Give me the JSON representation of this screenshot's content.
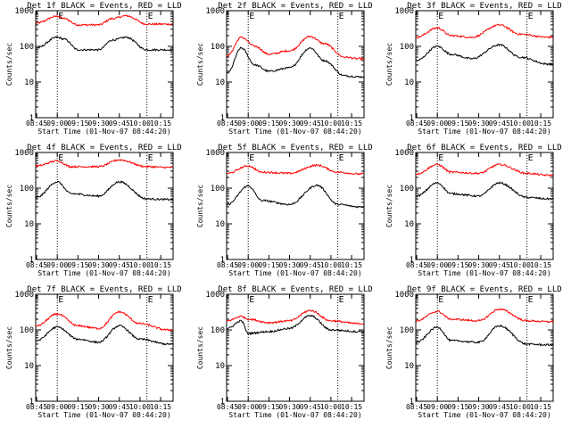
{
  "chart_data": [
    {
      "type": "line",
      "title": "Det 1f BLACK = Events, RED = LLD",
      "xlabel": "Start Time (01-Nov-07 08:44:20)",
      "ylabel": "Counts/sec",
      "x_tick_labels": [
        "08:45",
        "09:00",
        "09:15",
        "09:30",
        "09:45",
        "10:00",
        "10:15"
      ],
      "y_tick_labels": [
        "1",
        "10",
        "100",
        "1000"
      ],
      "yscale": "log",
      "ylim": [
        1,
        1000
      ],
      "markers": [
        {
          "label": "E",
          "time": "09:00"
        },
        {
          "label": "E",
          "time": "10:05"
        }
      ],
      "series": [
        {
          "color": "#ff0000",
          "x": [
            "08:45",
            "09:00",
            "09:05",
            "09:15",
            "09:30",
            "09:40",
            "09:50",
            "10:05",
            "10:20"
          ],
          "values": [
            450,
            700,
            600,
            400,
            400,
            600,
            720,
            420,
            420
          ]
        },
        {
          "color": "#000000",
          "x": [
            "08:45",
            "09:00",
            "09:05",
            "09:15",
            "09:30",
            "09:40",
            "09:50",
            "10:05",
            "10:20"
          ],
          "values": [
            90,
            180,
            160,
            80,
            80,
            150,
            180,
            80,
            80
          ]
        }
      ]
    },
    {
      "type": "line",
      "title": "Det 2f BLACK = Events, RED = LLD",
      "xlabel": "Start Time (01-Nov-07 08:44:20)",
      "ylabel": "Counts/sec",
      "x_tick_labels": [
        "08:45",
        "09:00",
        "09:15",
        "09:30",
        "09:45",
        "10:00",
        "10:15"
      ],
      "y_tick_labels": [
        "1",
        "10",
        "100",
        "1000"
      ],
      "yscale": "log",
      "ylim": [
        1,
        1000
      ],
      "markers": [
        {
          "label": "E",
          "time": "09:00"
        },
        {
          "label": "E",
          "time": "10:05"
        }
      ],
      "series": [
        {
          "color": "#ff0000",
          "x": [
            "08:45",
            "08:55",
            "09:05",
            "09:15",
            "09:30",
            "09:45",
            "09:55",
            "10:10",
            "10:20"
          ],
          "values": [
            55,
            180,
            100,
            60,
            75,
            190,
            120,
            50,
            45
          ]
        },
        {
          "color": "#000000",
          "x": [
            "08:45",
            "08:55",
            "09:05",
            "09:15",
            "09:30",
            "09:45",
            "09:55",
            "10:10",
            "10:20"
          ],
          "values": [
            18,
            90,
            30,
            20,
            25,
            90,
            40,
            15,
            14
          ]
        }
      ]
    },
    {
      "type": "line",
      "title": "Det 3f BLACK = Events, RED = LLD",
      "xlabel": "Start Time (01-Nov-07 08:44:20)",
      "ylabel": "Counts/sec",
      "x_tick_labels": [
        "08:45",
        "09:00",
        "09:15",
        "09:30",
        "09:45",
        "10:00",
        "10:15"
      ],
      "y_tick_labels": [
        "1",
        "10",
        "100",
        "1000"
      ],
      "yscale": "log",
      "ylim": [
        1,
        1000
      ],
      "markers": [
        {
          "label": "E",
          "time": "09:00"
        },
        {
          "label": "E",
          "time": "10:05"
        }
      ],
      "series": [
        {
          "color": "#ff0000",
          "x": [
            "08:45",
            "09:00",
            "09:10",
            "09:25",
            "09:45",
            "10:00",
            "10:20"
          ],
          "values": [
            180,
            330,
            200,
            180,
            400,
            220,
            180
          ]
        },
        {
          "color": "#000000",
          "x": [
            "08:45",
            "09:00",
            "09:10",
            "09:25",
            "09:45",
            "10:00",
            "10:20"
          ],
          "values": [
            40,
            100,
            60,
            45,
            110,
            50,
            32
          ]
        }
      ]
    },
    {
      "type": "line",
      "title": "Det 4f BLACK = Events, RED = LLD",
      "xlabel": "Start Time (01-Nov-07 08:44:20)",
      "ylabel": "Counts/sec",
      "x_tick_labels": [
        "08:45",
        "09:00",
        "09:15",
        "09:30",
        "09:45",
        "10:00",
        "10:15"
      ],
      "y_tick_labels": [
        "1",
        "10",
        "100",
        "1000"
      ],
      "yscale": "log",
      "ylim": [
        1,
        1000
      ],
      "markers": [
        {
          "label": "E",
          "time": "09:00"
        },
        {
          "label": "E",
          "time": "10:05"
        }
      ],
      "series": [
        {
          "color": "#ff0000",
          "x": [
            "08:45",
            "09:00",
            "09:10",
            "09:30",
            "09:45",
            "10:05",
            "10:20"
          ],
          "values": [
            420,
            580,
            400,
            400,
            620,
            400,
            380
          ]
        },
        {
          "color": "#000000",
          "x": [
            "08:45",
            "09:00",
            "09:10",
            "09:30",
            "09:45",
            "10:05",
            "10:20"
          ],
          "values": [
            55,
            150,
            70,
            60,
            150,
            50,
            48
          ]
        }
      ]
    },
    {
      "type": "line",
      "title": "Det 5f BLACK = Events, RED = LLD",
      "xlabel": "Start Time (01-Nov-07 08:44:20)",
      "ylabel": "Counts/sec",
      "x_tick_labels": [
        "08:45",
        "09:00",
        "09:15",
        "09:30",
        "09:45",
        "10:00",
        "10:15"
      ],
      "y_tick_labels": [
        "1",
        "10",
        "100",
        "1000"
      ],
      "yscale": "log",
      "ylim": [
        1,
        1000
      ],
      "markers": [
        {
          "label": "E",
          "time": "09:00"
        },
        {
          "label": "E",
          "time": "10:05"
        }
      ],
      "series": [
        {
          "color": "#ff0000",
          "x": [
            "08:45",
            "09:00",
            "09:10",
            "09:30",
            "09:50",
            "10:05",
            "10:20"
          ],
          "values": [
            260,
            420,
            280,
            260,
            440,
            280,
            250
          ]
        },
        {
          "color": "#000000",
          "x": [
            "08:45",
            "09:00",
            "09:10",
            "09:30",
            "09:50",
            "10:05",
            "10:20"
          ],
          "values": [
            35,
            115,
            45,
            35,
            120,
            35,
            30
          ]
        }
      ]
    },
    {
      "type": "line",
      "title": "Det 6f BLACK = Events, RED = LLD",
      "xlabel": "Start Time (01-Nov-07 08:44:20)",
      "ylabel": "Counts/sec",
      "x_tick_labels": [
        "08:45",
        "09:00",
        "09:15",
        "09:30",
        "09:45",
        "10:00",
        "10:15"
      ],
      "y_tick_labels": [
        "1",
        "10",
        "100",
        "1000"
      ],
      "yscale": "log",
      "ylim": [
        1,
        1000
      ],
      "markers": [
        {
          "label": "E",
          "time": "09:00"
        },
        {
          "label": "E",
          "time": "10:05"
        }
      ],
      "series": [
        {
          "color": "#ff0000",
          "x": [
            "08:45",
            "09:00",
            "09:10",
            "09:30",
            "09:45",
            "10:05",
            "10:20"
          ],
          "values": [
            250,
            460,
            280,
            260,
            460,
            260,
            230
          ]
        },
        {
          "color": "#000000",
          "x": [
            "08:45",
            "09:00",
            "09:10",
            "09:30",
            "09:45",
            "10:05",
            "10:20"
          ],
          "values": [
            60,
            140,
            70,
            60,
            140,
            55,
            50
          ]
        }
      ]
    },
    {
      "type": "line",
      "title": "Det 7f BLACK = Events, RED = LLD",
      "xlabel": "Start Time (01-Nov-07 08:44:20)",
      "ylabel": "Counts/sec",
      "x_tick_labels": [
        "08:45",
        "09:00",
        "09:15",
        "09:30",
        "09:45",
        "10:00",
        "10:15"
      ],
      "y_tick_labels": [
        "1",
        "10",
        "100",
        "1000"
      ],
      "yscale": "log",
      "ylim": [
        1,
        1000
      ],
      "markers": [
        {
          "label": "E",
          "time": "09:00"
        },
        {
          "label": "E",
          "time": "10:05"
        }
      ],
      "series": [
        {
          "color": "#ff0000",
          "x": [
            "08:45",
            "09:00",
            "09:15",
            "09:30",
            "09:45",
            "10:00",
            "10:20"
          ],
          "values": [
            130,
            280,
            130,
            110,
            320,
            150,
            100
          ]
        },
        {
          "color": "#000000",
          "x": [
            "08:45",
            "09:00",
            "09:15",
            "09:30",
            "09:45",
            "10:00",
            "10:20"
          ],
          "values": [
            50,
            120,
            55,
            45,
            130,
            55,
            40
          ]
        }
      ]
    },
    {
      "type": "line",
      "title": "Det 8f BLACK = Events, RED = LLD",
      "xlabel": "Start Time (01-Nov-07 08:44:20)",
      "ylabel": "Counts/sec",
      "x_tick_labels": [
        "08:45",
        "09:00",
        "09:15",
        "09:30",
        "09:45",
        "10:00",
        "10:15"
      ],
      "y_tick_labels": [
        "1",
        "10",
        "100",
        "1000"
      ],
      "yscale": "log",
      "ylim": [
        1,
        1000
      ],
      "markers": [
        {
          "label": "E",
          "time": "09:00"
        },
        {
          "label": "E",
          "time": "10:05"
        }
      ],
      "series": [
        {
          "color": "#ff0000",
          "x": [
            "08:45",
            "08:55",
            "09:00",
            "09:15",
            "09:30",
            "09:45",
            "10:00",
            "10:20"
          ],
          "values": [
            180,
            240,
            200,
            160,
            180,
            350,
            180,
            150
          ]
        },
        {
          "color": "#000000",
          "x": [
            "08:45",
            "08:55",
            "09:00",
            "09:15",
            "09:30",
            "09:45",
            "10:00",
            "10:20"
          ],
          "values": [
            110,
            180,
            80,
            90,
            110,
            250,
            100,
            90
          ]
        }
      ]
    },
    {
      "type": "line",
      "title": "Det 9f BLACK = Events, RED = LLD",
      "xlabel": "Start Time (01-Nov-07 08:44:20)",
      "ylabel": "Counts/sec",
      "x_tick_labels": [
        "08:45",
        "09:00",
        "09:15",
        "09:30",
        "09:45",
        "10:00",
        "10:15"
      ],
      "y_tick_labels": [
        "1",
        "10",
        "100",
        "1000"
      ],
      "yscale": "log",
      "ylim": [
        1,
        1000
      ],
      "markers": [
        {
          "label": "E",
          "time": "09:00"
        },
        {
          "label": "E",
          "time": "10:05"
        }
      ],
      "series": [
        {
          "color": "#ff0000",
          "x": [
            "08:45",
            "09:00",
            "09:10",
            "09:30",
            "09:45",
            "10:05",
            "10:20"
          ],
          "values": [
            180,
            330,
            200,
            180,
            380,
            180,
            170
          ]
        },
        {
          "color": "#000000",
          "x": [
            "08:45",
            "09:00",
            "09:10",
            "09:30",
            "09:45",
            "10:05",
            "10:20"
          ],
          "values": [
            45,
            120,
            50,
            45,
            130,
            40,
            38
          ]
        }
      ]
    }
  ]
}
